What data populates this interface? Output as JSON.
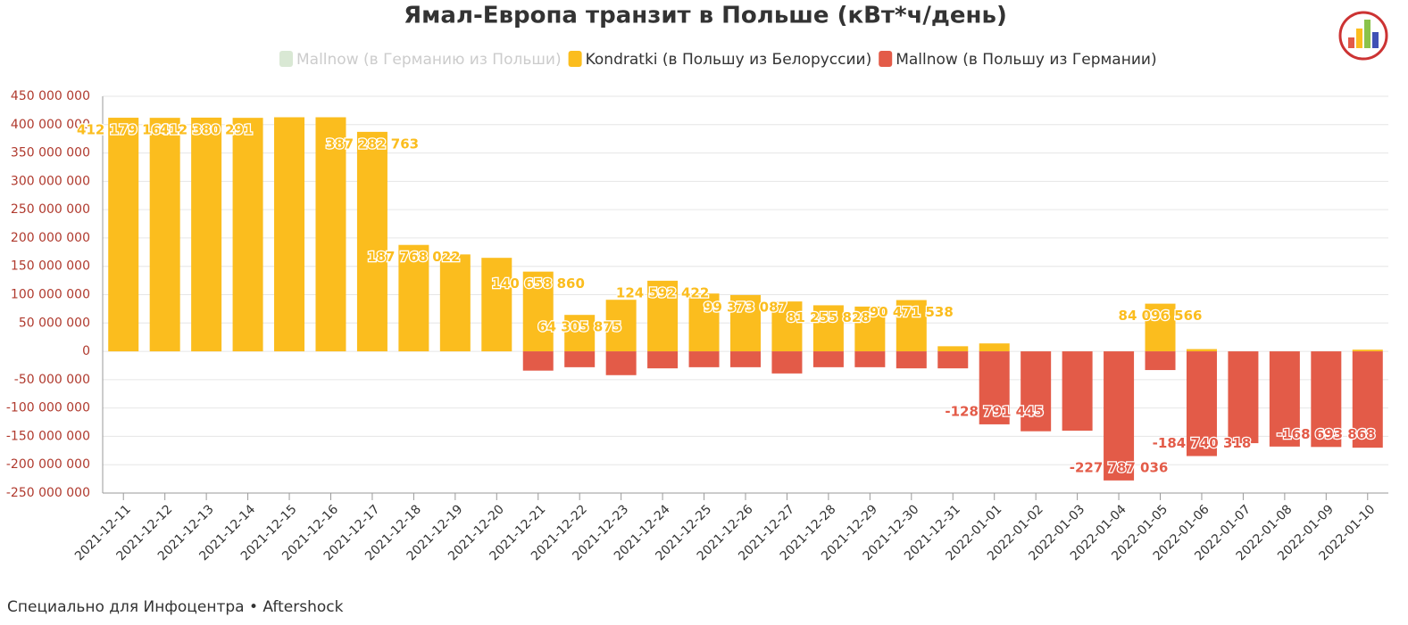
{
  "chart_data": {
    "type": "bar",
    "stacked": true,
    "title": "Ямал-Европа транзит в Польше (кВт*ч/день)",
    "categories": [
      "2021-12-11",
      "2021-12-12",
      "2021-12-13",
      "2021-12-14",
      "2021-12-15",
      "2021-12-16",
      "2021-12-17",
      "2021-12-18",
      "2021-12-19",
      "2021-12-20",
      "2021-12-21",
      "2021-12-22",
      "2021-12-23",
      "2021-12-24",
      "2021-12-25",
      "2021-12-26",
      "2021-12-27",
      "2021-12-28",
      "2021-12-29",
      "2021-12-30",
      "2021-12-31",
      "2022-01-01",
      "2022-01-02",
      "2022-01-03",
      "2022-01-04",
      "2022-01-05",
      "2022-01-06",
      "2022-01-07",
      "2022-01-08",
      "2022-01-09",
      "2022-01-10"
    ],
    "series": [
      {
        "name": "Mallnow (в Германию из Польши)",
        "color": "#d9e8d4",
        "hidden": true,
        "values": [
          null,
          null,
          null,
          null,
          null,
          null,
          null,
          null,
          null,
          null,
          null,
          null,
          null,
          null,
          null,
          null,
          null,
          null,
          null,
          null,
          null,
          null,
          null,
          null,
          null,
          null,
          null,
          null,
          null,
          null,
          null
        ]
      },
      {
        "name": "Kondratki (в Польшу из Белоруссии)",
        "color": "#fbbd1e",
        "values": [
          412179160,
          412000000,
          412380291,
          412000000,
          413000000,
          413000000,
          387282763,
          187768022,
          171000000,
          165000000,
          140658860,
          64305875,
          91000000,
          124592422,
          102000000,
          99373087,
          88000000,
          81255828,
          79000000,
          90471538,
          9000000,
          14000000,
          0,
          0,
          0,
          84096566,
          4000000,
          0,
          0,
          0,
          3000000
        ],
        "value_labels": [
          "412 179 160",
          null,
          "412 380 291",
          null,
          null,
          null,
          "387 282 763",
          "187 768 022",
          null,
          null,
          "140 658 860",
          "64 305 875",
          null,
          "124 592 422",
          null,
          "99 373 087",
          null,
          "81 255 828",
          null,
          "90 471 538",
          null,
          null,
          null,
          null,
          null,
          "84 096 566",
          null,
          null,
          null,
          null,
          null
        ]
      },
      {
        "name": "Mallnow (в Польшу из Германии)",
        "color": "#e35b48",
        "values": [
          0,
          0,
          0,
          0,
          0,
          0,
          0,
          0,
          0,
          0,
          -34000000,
          -28000000,
          -42000000,
          -30000000,
          -28000000,
          -28000000,
          -39000000,
          -28000000,
          -28000000,
          -30000000,
          -30000000,
          -128791445,
          -141000000,
          -140000000,
          -227787036,
          -33000000,
          -184740318,
          -162000000,
          -168000000,
          -168693868,
          -170000000
        ],
        "value_labels": [
          null,
          null,
          null,
          null,
          null,
          null,
          null,
          null,
          null,
          null,
          null,
          null,
          null,
          null,
          null,
          null,
          null,
          null,
          null,
          null,
          null,
          "-128 791 445",
          null,
          null,
          "-227 787 036",
          null,
          "-184 740 318",
          null,
          null,
          "-168 693 868",
          null
        ]
      }
    ],
    "ylim": [
      -250000000,
      450000000
    ],
    "yticks": [
      {
        "value": 450000000,
        "label": "450 000 000"
      },
      {
        "value": 400000000,
        "label": "400 000 000"
      },
      {
        "value": 350000000,
        "label": "350 000 000"
      },
      {
        "value": 300000000,
        "label": "300 000 000"
      },
      {
        "value": 250000000,
        "label": "250 000 000"
      },
      {
        "value": 200000000,
        "label": "200 000 000"
      },
      {
        "value": 150000000,
        "label": "150 000 000"
      },
      {
        "value": 100000000,
        "label": "100 000 000"
      },
      {
        "value": 50000000,
        "label": "50 000 000"
      },
      0,
      {
        "value": -50000000,
        "label": "-50 000 000"
      },
      {
        "value": -100000000,
        "label": "-100 000 000"
      },
      {
        "value": -150000000,
        "label": "-150 000 000"
      },
      {
        "value": -200000000,
        "label": "-200 000 000"
      },
      {
        "value": -250000000,
        "label": "-250 000 000"
      }
    ],
    "grid": true,
    "legend": "top",
    "footer": "Специально для Инфоцентра • Aftershock"
  }
}
